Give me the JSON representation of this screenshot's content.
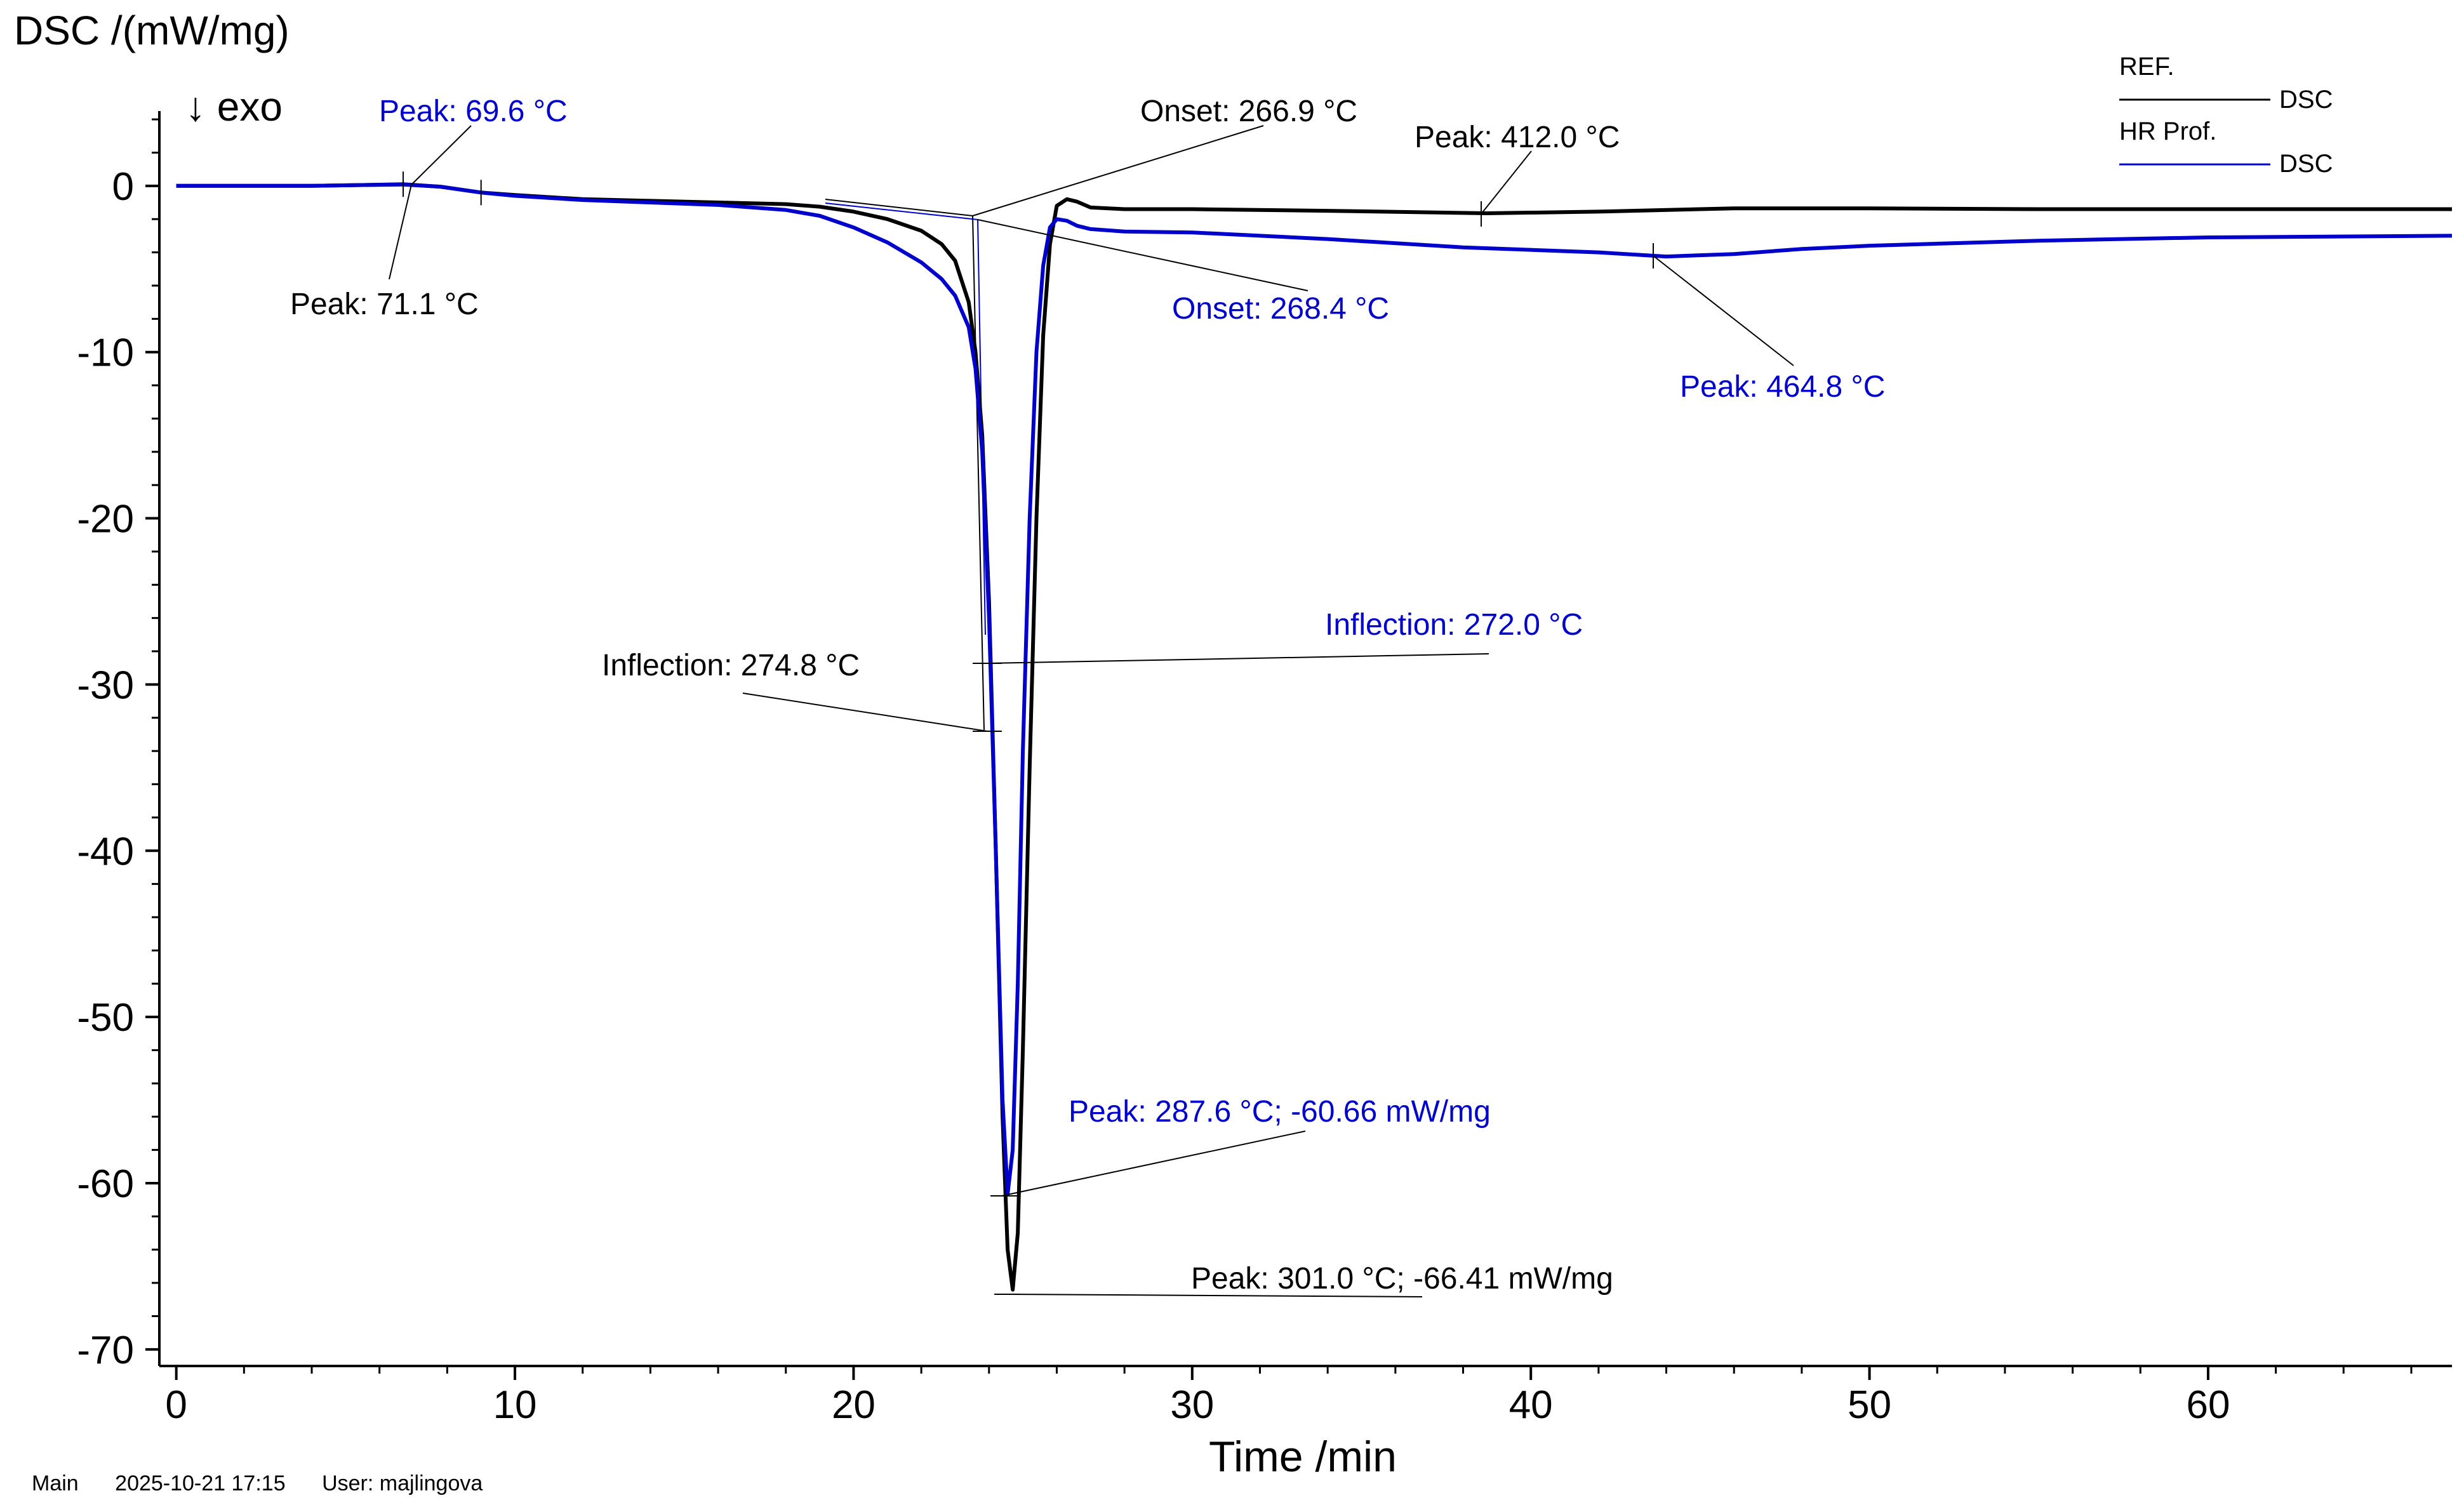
{
  "chart_data": {
    "type": "line",
    "ylabel": "DSC /(mW/mg)",
    "xlabel": "Time /min",
    "exo_label": "↓ exo",
    "xlim": [
      -0.5,
      67.2
    ],
    "ylim": [
      -71,
      4.5
    ],
    "x_ticks": [
      0,
      10,
      20,
      30,
      40,
      50,
      60
    ],
    "x_tick_labels": [
      "0",
      "10",
      "20",
      "30",
      "40",
      "50",
      "60"
    ],
    "y_ticks": [
      0,
      -10,
      -20,
      -30,
      -40,
      -50,
      -60,
      -70
    ],
    "y_tick_labels": [
      "0",
      "-10",
      "-20",
      "-30",
      "-40",
      "-50",
      "-60",
      "-70"
    ],
    "legend": {
      "placement": "top-right",
      "entries": [
        {
          "group": "REF.",
          "label": "DSC",
          "color": "#000000"
        },
        {
          "group": "HR Prof.",
          "label": "DSC",
          "color": "#0000cc"
        }
      ]
    },
    "series": [
      {
        "name": "REF.",
        "color": "#000000",
        "x": [
          0,
          2,
          4,
          5.5,
          6.7,
          7.8,
          9,
          10,
          12,
          14,
          16,
          18,
          19,
          20,
          21,
          22,
          22.6,
          23,
          23.4,
          23.6,
          23.8,
          24.0,
          24.2,
          24.4,
          24.55,
          24.7,
          24.85,
          25.0,
          25.2,
          25.4,
          25.6,
          25.8,
          26.0,
          26.3,
          26.6,
          27,
          28,
          30,
          34,
          38.7,
          42,
          46,
          50,
          55,
          60,
          67.2
        ],
        "y": [
          0,
          0,
          0,
          0.05,
          0.1,
          -0.05,
          -0.4,
          -0.55,
          -0.8,
          -0.9,
          -1.0,
          -1.1,
          -1.25,
          -1.55,
          -2.0,
          -2.7,
          -3.5,
          -4.5,
          -7,
          -10,
          -15,
          -25,
          -40,
          -56,
          -64,
          -66.41,
          -63,
          -52,
          -35,
          -20,
          -9,
          -3.5,
          -1.2,
          -0.8,
          -0.95,
          -1.3,
          -1.4,
          -1.4,
          -1.5,
          -1.65,
          -1.55,
          -1.35,
          -1.35,
          -1.4,
          -1.4,
          -1.4
        ]
      },
      {
        "name": "HR Prof.",
        "color": "#0000cc",
        "x": [
          0,
          2,
          4,
          5.5,
          6.7,
          7.8,
          9,
          10,
          12,
          14,
          16,
          18,
          19,
          20,
          21,
          22,
          22.6,
          23,
          23.4,
          23.6,
          23.8,
          24.0,
          24.2,
          24.4,
          24.55,
          24.7,
          24.85,
          25.0,
          25.2,
          25.4,
          25.6,
          25.8,
          26.0,
          26.3,
          26.6,
          27,
          28,
          30,
          34,
          38,
          42,
          44,
          46,
          48,
          50,
          55,
          60,
          67.2
        ],
        "y": [
          0,
          0,
          0,
          0.05,
          0.08,
          -0.05,
          -0.4,
          -0.6,
          -0.85,
          -1.0,
          -1.15,
          -1.45,
          -1.8,
          -2.5,
          -3.4,
          -4.6,
          -5.6,
          -6.6,
          -8.5,
          -11,
          -16,
          -26,
          -40,
          -55,
          -60.66,
          -58,
          -48,
          -34,
          -20,
          -10,
          -4.8,
          -2.5,
          -2.0,
          -2.1,
          -2.4,
          -2.6,
          -2.75,
          -2.8,
          -3.2,
          -3.7,
          -4.0,
          -4.25,
          -4.1,
          -3.8,
          -3.6,
          -3.3,
          -3.1,
          -3.0
        ]
      }
    ],
    "annotations": [
      {
        "text": "Peak: 69.6 °C",
        "series": "HR Prof.",
        "color": "#0000cc",
        "point": [
          6.7,
          0.08
        ]
      },
      {
        "text": "Peak: 71.1 °C",
        "series": "REF.",
        "color": "#000000",
        "point": [
          6.7,
          0.1
        ]
      },
      {
        "text": "Onset: 266.9 °C",
        "series": "REF.",
        "color": "#000000",
        "point": [
          23.7,
          -1.7
        ]
      },
      {
        "text": "Onset: 268.4 °C",
        "series": "HR Prof.",
        "color": "#0000cc",
        "point": [
          23.8,
          -1.8
        ]
      },
      {
        "text": "Peak: 412.0 °C",
        "series": "REF.",
        "color": "#000000",
        "point": [
          38.7,
          -1.65
        ]
      },
      {
        "text": "Peak: 464.8 °C",
        "series": "HR Prof.",
        "color": "#0000cc",
        "point": [
          44.0,
          -4.25
        ]
      },
      {
        "text": "Inflection: 272.0 °C",
        "series": "HR Prof.",
        "color": "#0000cc",
        "point": [
          24.2,
          -28.5
        ]
      },
      {
        "text": "Inflection: 274.8 °C",
        "series": "REF.",
        "color": "#000000",
        "point": [
          24.2,
          -32.8
        ]
      },
      {
        "text": "Peak: 287.6 °C; -60.66 mW/mg",
        "series": "HR Prof.",
        "color": "#0000cc",
        "point": [
          24.55,
          -60.66
        ]
      },
      {
        "text": "Peak: 301.0 °C; -66.41 mW/mg",
        "series": "REF.",
        "color": "#000000",
        "point": [
          24.7,
          -66.41
        ]
      }
    ]
  },
  "footer": {
    "items": [
      "Main",
      "2025-10-21 17:15",
      "User: majlingova"
    ]
  }
}
